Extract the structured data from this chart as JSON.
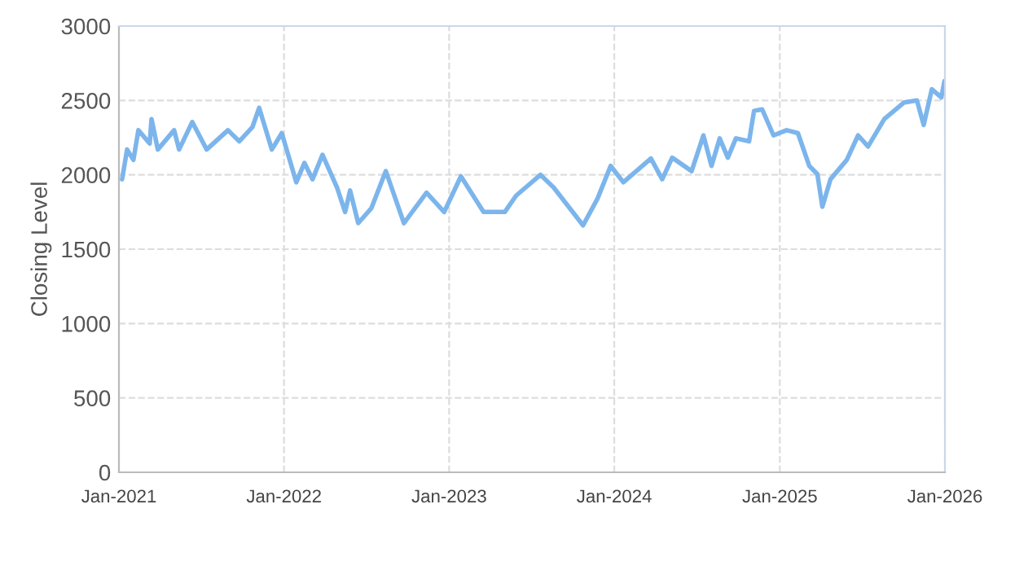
{
  "chart_data": {
    "type": "line",
    "ylabel": "Closing Level",
    "x": [
      "2021-01-08",
      "2021-01-19",
      "2021-02-02",
      "2021-02-13",
      "2021-03-10",
      "2021-03-14",
      "2021-03-28",
      "2021-05-03",
      "2021-05-14",
      "2021-06-12",
      "2021-07-14",
      "2021-08-30",
      "2021-09-24",
      "2021-10-23",
      "2021-11-07",
      "2021-12-05",
      "2021-12-27",
      "2022-01-28",
      "2022-02-15",
      "2022-03-05",
      "2022-03-27",
      "2022-04-28",
      "2022-05-16",
      "2022-05-27",
      "2022-06-14",
      "2022-07-13",
      "2022-08-14",
      "2022-09-23",
      "2022-11-12",
      "2022-12-21",
      "2023-01-27",
      "2023-03-18",
      "2023-05-04",
      "2023-05-29",
      "2023-07-22",
      "2023-08-20",
      "2023-10-24",
      "2023-11-25",
      "2023-12-24",
      "2024-01-21",
      "2024-03-22",
      "2024-04-16",
      "2024-05-08",
      "2024-06-20",
      "2024-07-16",
      "2024-08-03",
      "2024-08-21",
      "2024-09-08",
      "2024-09-26",
      "2024-10-25",
      "2024-11-05",
      "2024-11-23",
      "2024-12-18",
      "2025-01-16",
      "2025-02-10",
      "2025-03-07",
      "2025-03-25",
      "2025-04-05",
      "2025-04-23",
      "2025-05-29",
      "2025-06-23",
      "2025-07-15",
      "2025-08-20",
      "2025-10-02",
      "2025-10-31",
      "2025-11-15",
      "2025-12-03",
      "2025-12-24",
      "2025-12-31"
    ],
    "series": [
      {
        "color": "#7cb5ec",
        "values": [
          1970,
          2170,
          2100,
          2300,
          2210,
          2375,
          2170,
          2300,
          2170,
          2355,
          2170,
          2300,
          2225,
          2320,
          2450,
          2170,
          2280,
          1950,
          2080,
          1970,
          2135,
          1915,
          1750,
          1895,
          1675,
          1775,
          2025,
          1675,
          1880,
          1750,
          1990,
          1750,
          1750,
          1860,
          2000,
          1915,
          1660,
          1840,
          2060,
          1950,
          2110,
          1970,
          2115,
          2025,
          2265,
          2060,
          2245,
          2115,
          2245,
          2225,
          2430,
          2440,
          2265,
          2300,
          2280,
          2060,
          2005,
          1785,
          1970,
          2100,
          2265,
          2190,
          2375,
          2485,
          2500,
          2335,
          2575,
          2520,
          2630
        ]
      }
    ],
    "xlim": [
      "2021-01-01",
      "2026-01-01"
    ],
    "xticks": [
      {
        "value": "2021-01-01",
        "label": "Jan-2021"
      },
      {
        "value": "2022-01-01",
        "label": "Jan-2022"
      },
      {
        "value": "2023-01-01",
        "label": "Jan-2023"
      },
      {
        "value": "2024-01-01",
        "label": "Jan-2024"
      },
      {
        "value": "2025-01-01",
        "label": "Jan-2025"
      },
      {
        "value": "2026-01-01",
        "label": "Jan-2026"
      }
    ],
    "ylim": [
      0,
      3000
    ],
    "yticks": [
      0,
      500,
      1000,
      1500,
      2000,
      2500,
      3000
    ],
    "grid": true,
    "line_style": "solid",
    "marker": "none",
    "legend": false
  }
}
